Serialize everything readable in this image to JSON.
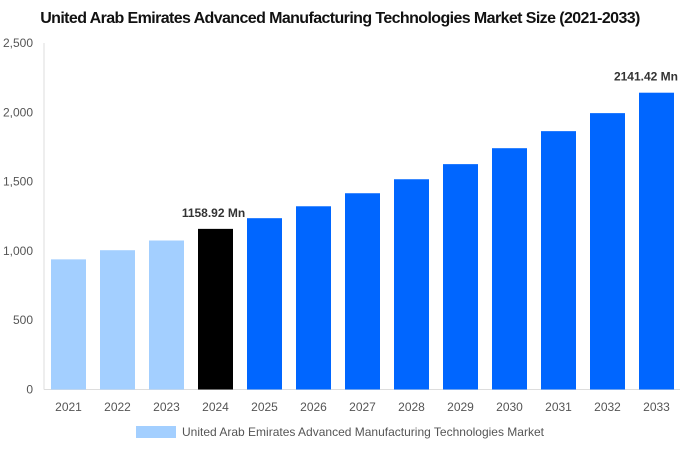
{
  "chart_data": {
    "type": "bar",
    "title": "United Arab Emirates Advanced Manufacturing Technologies Market Size (2021-2033)",
    "categories": [
      "2021",
      "2022",
      "2023",
      "2024",
      "2025",
      "2026",
      "2027",
      "2028",
      "2029",
      "2030",
      "2031",
      "2032",
      "2033"
    ],
    "series": [
      {
        "name": "United Arab Emirates Advanced Manufacturing Technologies Market",
        "values": [
          939,
          1005,
          1075,
          1158.92,
          1236,
          1322,
          1416,
          1517,
          1626,
          1741,
          1864,
          1994,
          2141.42
        ]
      }
    ],
    "bar_colors": [
      "#a3cfff",
      "#a3cfff",
      "#a3cfff",
      "#000000",
      "#0066ff",
      "#0066ff",
      "#0066ff",
      "#0066ff",
      "#0066ff",
      "#0066ff",
      "#0066ff",
      "#0066ff",
      "#0066ff"
    ],
    "data_labels": [
      {
        "category": "2024",
        "text": "1158.92 Mn"
      },
      {
        "category": "2033",
        "text": "2141.42 Mn"
      }
    ],
    "yticks": [
      "0",
      "500",
      "1,000",
      "1,500",
      "2,000",
      "2,500"
    ],
    "ylim": [
      0,
      2500
    ],
    "xlabel": "",
    "ylabel": "",
    "grid": false,
    "legend": "bottom"
  }
}
